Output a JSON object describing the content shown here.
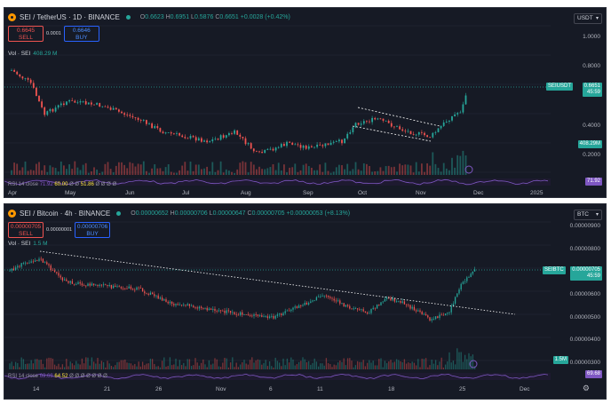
{
  "colors": {
    "up": "#26a69a",
    "down": "#ef5350",
    "bg": "#161a25",
    "rsi": "#7e57c2"
  },
  "top": {
    "symbol": "SEI / TetherUS · 1D · BINANCE",
    "ohlc": {
      "o_label": "O",
      "o": "0.6623",
      "h_label": "H",
      "h": "0.6951",
      "l_label": "L",
      "l": "0.5876",
      "c_label": "C",
      "c": "0.6651",
      "chg": "+0.0028 (+0.42%)"
    },
    "sell_price": "0.6645",
    "sell_label": "SELL",
    "spread": "0.0001",
    "buy_price": "0.6646",
    "buy_label": "BUY",
    "vol_label": "Vol · SEI",
    "vol_value": "408.29 M",
    "currency": "USDT",
    "yaxis": [
      "1.0000",
      "0.8000",
      "0.4000",
      "0.2000"
    ],
    "price_tag_symbol": "SEIUSDT",
    "price_tag_value": "0.6651",
    "price_tag_time": "45:59",
    "vol_tag": "408.29M",
    "rsi_tag": "71.92",
    "rsi_text": {
      "label": "RSI 14 close",
      "v1": "71.92",
      "v2": "60.00",
      "mid": "Ø Ø",
      "v3": "51.86",
      "tail": "Ø Ø Ø Ø"
    },
    "xaxis": [
      "Apr",
      "May",
      "Jun",
      "Jul",
      "Aug",
      "Sep",
      "Oct",
      "Nov",
      "Dec",
      "2025"
    ],
    "chart_data": {
      "type": "candlestick",
      "ylim": [
        0.15,
        1.1
      ],
      "last": 0.6651,
      "x_labels": [
        "Apr",
        "May",
        "Jun",
        "Jul",
        "Aug",
        "Sep",
        "Oct",
        "Nov",
        "Dec",
        "2025"
      ]
    }
  },
  "bottom": {
    "symbol": "SEI / Bitcoin · 4h · BINANCE",
    "ohlc": {
      "o_label": "O",
      "o": "0.00000652",
      "h_label": "H",
      "h": "0.00000706",
      "l_label": "L",
      "l": "0.00000647",
      "c_label": "C",
      "c": "0.00000705",
      "chg": "+0.00000053 (+8.13%)"
    },
    "sell_price": "0.00000705",
    "sell_label": "SELL",
    "spread": "0.00000001",
    "buy_price": "0.00000706",
    "buy_label": "BUY",
    "vol_label": "Vol · SEI",
    "vol_value": "1.5 M",
    "currency": "BTC",
    "yaxis": [
      "0.00000900",
      "0.00000800",
      "0.00000600",
      "0.00000500",
      "0.00000400",
      "0.00000300"
    ],
    "price_tag_symbol": "SEIBTC",
    "price_tag_value": "0.00000705",
    "price_tag_time": "45:59",
    "vol_tag": "1.5M",
    "rsi_tag": "69.68",
    "rsi_text": {
      "label": "RSI 14 close",
      "v1": "69.68",
      "v2": "64.52",
      "tail": "Ø Ø Ø Ø Ø Ø Ø"
    },
    "xaxis": [
      "14",
      "21",
      "26",
      "Nov",
      "6",
      "11",
      "18",
      "25",
      "Dec"
    ],
    "chart_data": {
      "type": "candlestick",
      "ylim": [
        2.9e-06,
        9.5e-06
      ],
      "last": 7.05e-06,
      "x_labels": [
        "14",
        "21",
        "26",
        "Nov",
        "6",
        "11",
        "18",
        "25",
        "Dec"
      ]
    }
  }
}
